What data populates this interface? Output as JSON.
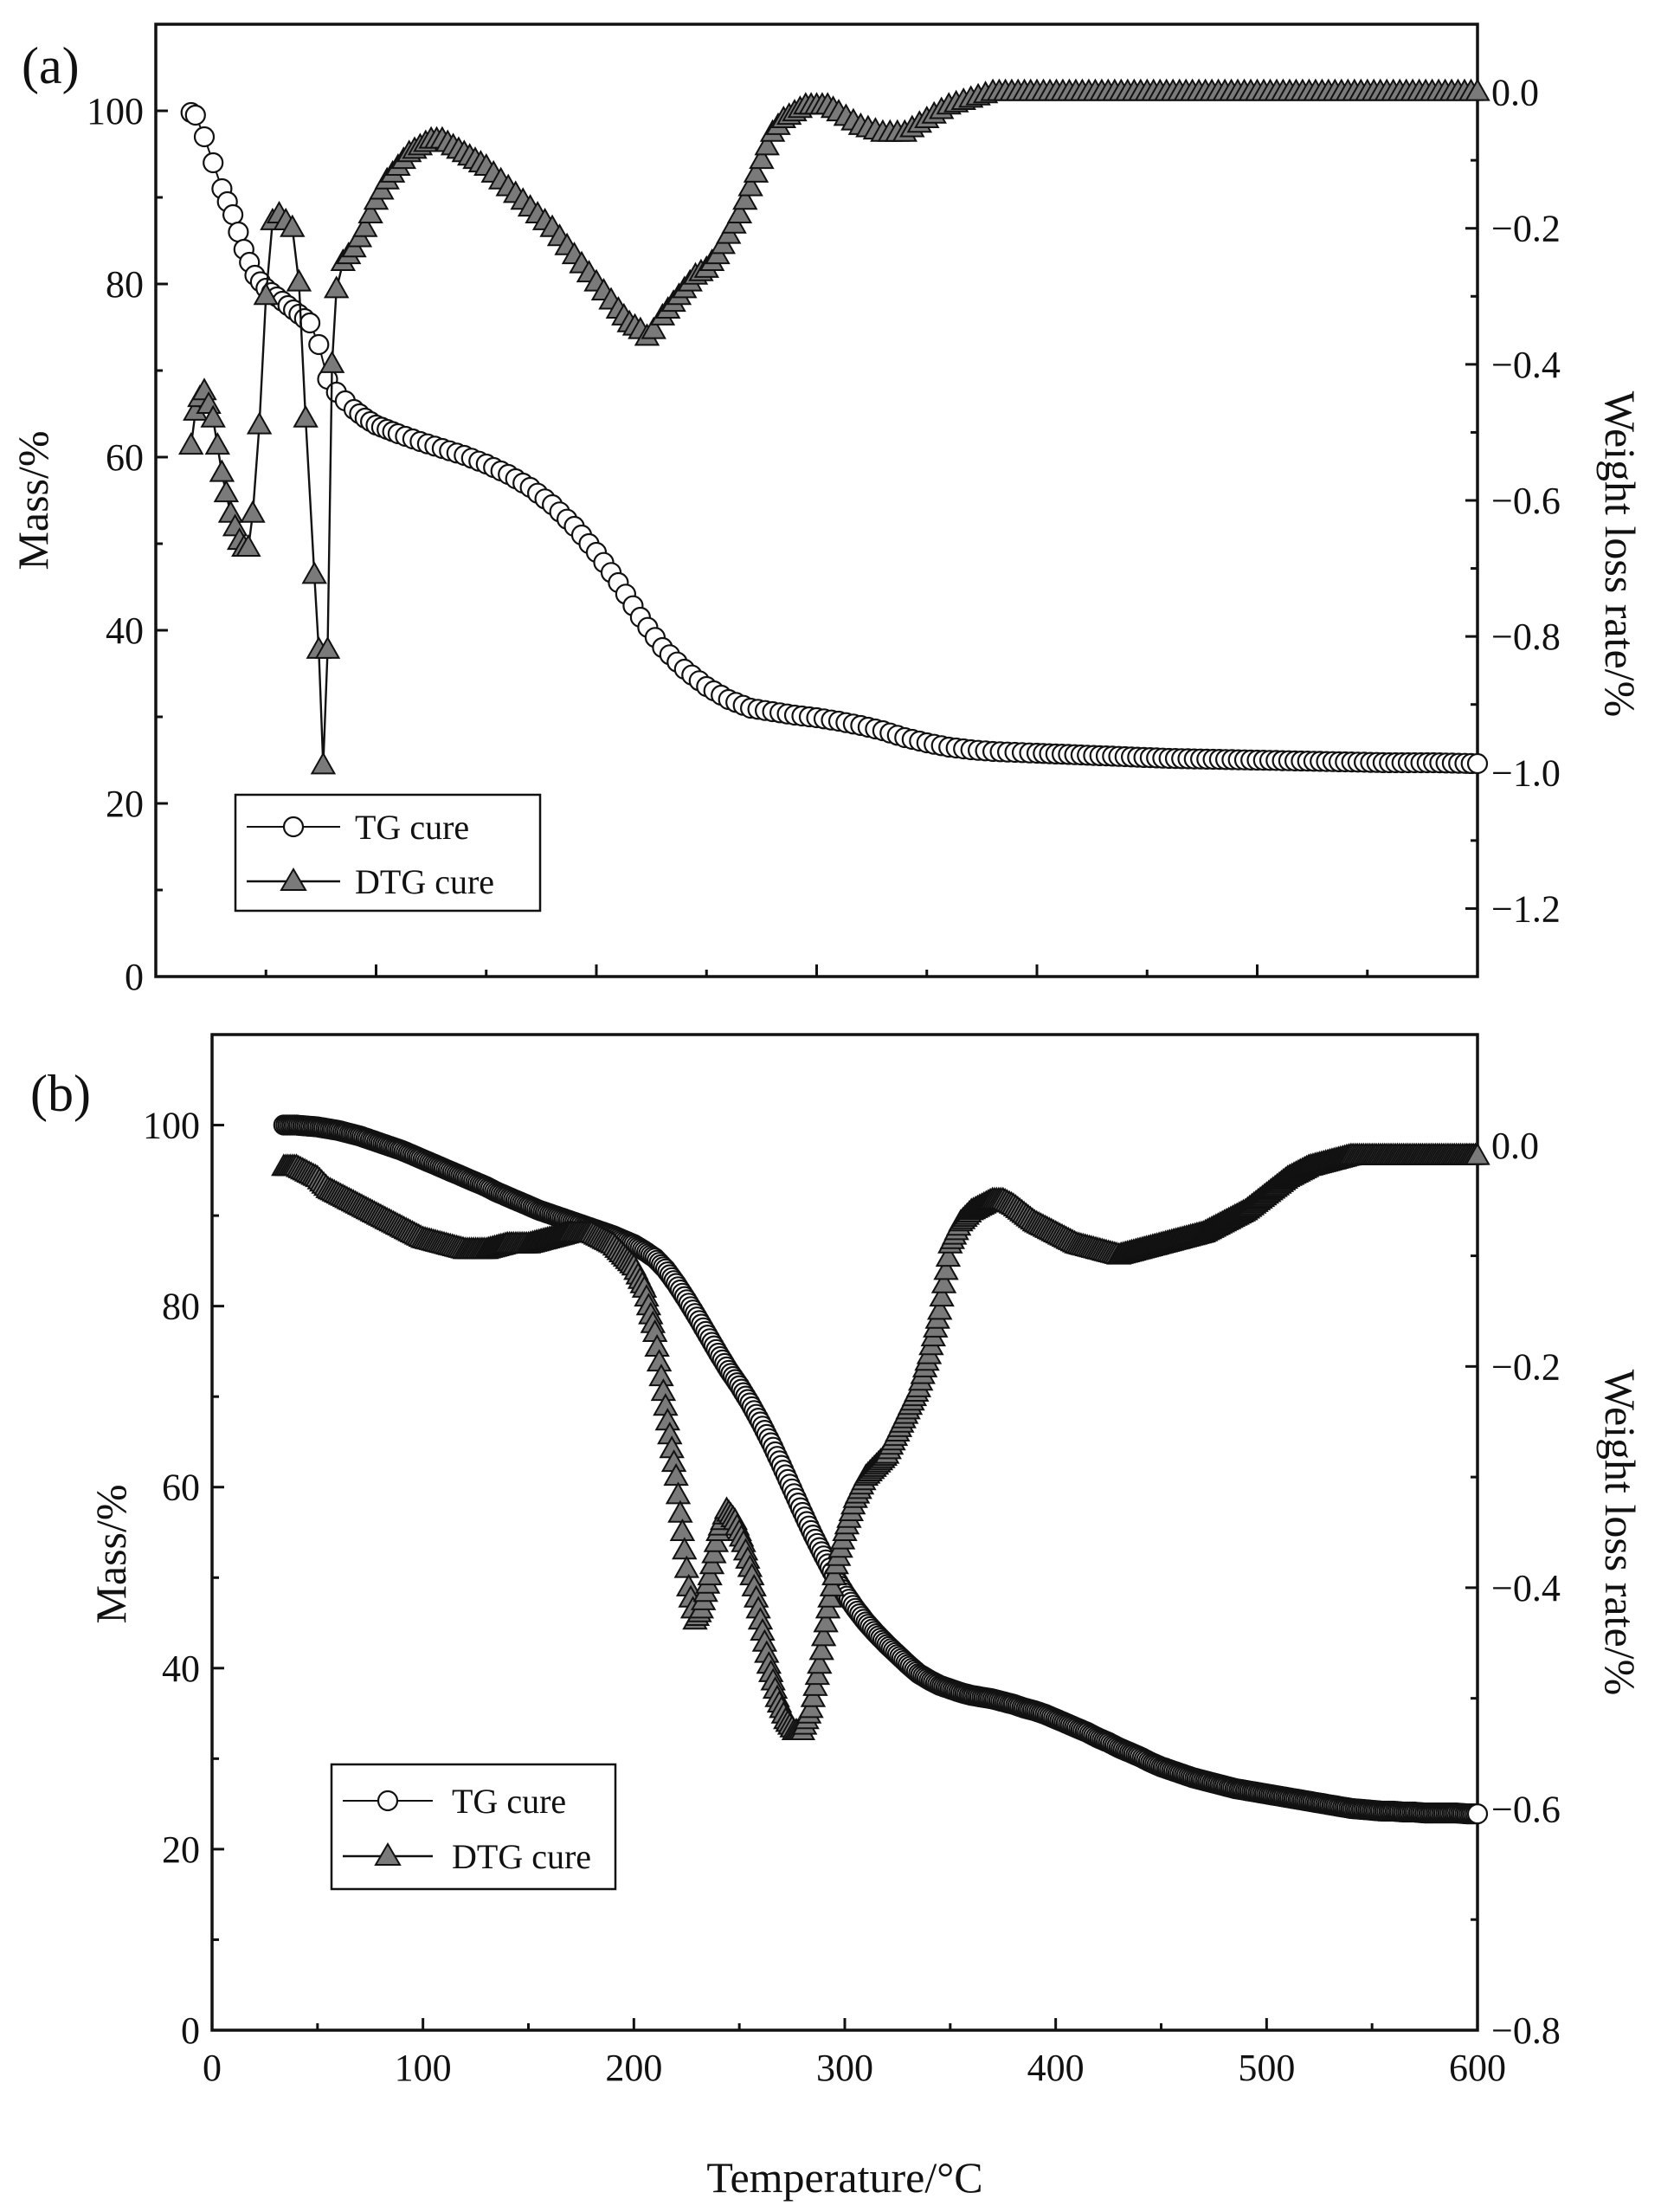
{
  "figure": {
    "x_axis_title": "Temperature/°C",
    "x_tick_labels": [
      "0",
      "100",
      "200",
      "300",
      "400",
      "500",
      "600"
    ]
  },
  "chart_data": [
    {
      "type": "line",
      "panel_label": "(a)",
      "xlim": [
        0,
        600
      ],
      "ylabel_left": "Mass/%",
      "ylabel_right": "Weight loss rate/%",
      "ylim_left": [
        0,
        110
      ],
      "ylim_right": [
        -1.3,
        0.1
      ],
      "y_left_ticks": [
        0,
        20,
        40,
        60,
        80,
        100
      ],
      "y_left_tick_labels": [
        "0",
        "20",
        "40",
        "60",
        "80",
        "100"
      ],
      "y_right_ticks": [
        0.0,
        -0.2,
        -0.4,
        -0.6,
        -0.8,
        -1.0,
        -1.2
      ],
      "y_right_tick_labels": [
        "0.0",
        "−0.2",
        "−0.4",
        "−0.6",
        "−0.8",
        "−1.0",
        "−1.2"
      ],
      "legend": [
        "TG cure",
        "DTG cure"
      ],
      "legend_position": "bottom-left",
      "series": [
        {
          "name": "TG cure",
          "axis": "left",
          "marker": "circle",
          "x": [
            16,
            18,
            22,
            26,
            30,
            35,
            40,
            45,
            50,
            55,
            60,
            65,
            70,
            74,
            78,
            82,
            86,
            90,
            95,
            100,
            105,
            110,
            120,
            130,
            140,
            150,
            160,
            170,
            180,
            190,
            200,
            210,
            220,
            230,
            240,
            250,
            260,
            270,
            280,
            290,
            300,
            310,
            320,
            330,
            340,
            350,
            360,
            370,
            380,
            390,
            400,
            420,
            440,
            460,
            480,
            500,
            520,
            540,
            560,
            580,
            600
          ],
          "y": [
            99.8,
            99.5,
            97,
            94,
            91,
            88,
            84,
            81,
            79.5,
            78.5,
            77.5,
            76.5,
            75.5,
            73,
            69,
            67.5,
            66.5,
            65.5,
            64.5,
            63.7,
            63.2,
            62.7,
            61.8,
            61,
            60.2,
            59.2,
            58,
            56.5,
            54.5,
            52,
            49,
            45.5,
            41.5,
            38,
            35.5,
            33.5,
            32,
            31,
            30.6,
            30.2,
            29.9,
            29.5,
            29,
            28.4,
            27.6,
            27,
            26.5,
            26.2,
            26,
            25.9,
            25.8,
            25.6,
            25.4,
            25.2,
            25.1,
            25,
            24.9,
            24.8,
            24.7,
            24.7,
            24.6
          ]
        },
        {
          "name": "DTG cure",
          "axis": "right",
          "marker": "triangle",
          "x": [
            16,
            18,
            20,
            22,
            24,
            26,
            28,
            30,
            32,
            34,
            36,
            38,
            40,
            42,
            44,
            47,
            50,
            53,
            56,
            59,
            62,
            65,
            68,
            72,
            74,
            76,
            78,
            80,
            82,
            85,
            90,
            95,
            100,
            105,
            110,
            115,
            120,
            125,
            130,
            135,
            140,
            145,
            150,
            160,
            170,
            180,
            190,
            200,
            210,
            215,
            220,
            223,
            226,
            230,
            235,
            240,
            245,
            250,
            255,
            260,
            265,
            270,
            275,
            280,
            285,
            290,
            295,
            300,
            305,
            310,
            320,
            330,
            340,
            350,
            360,
            370,
            380,
            400,
            450,
            500,
            550,
            600
          ],
          "y": [
            -0.52,
            -0.47,
            -0.45,
            -0.44,
            -0.46,
            -0.48,
            -0.52,
            -0.56,
            -0.59,
            -0.62,
            -0.64,
            -0.66,
            -0.67,
            -0.67,
            -0.62,
            -0.49,
            -0.3,
            -0.19,
            -0.18,
            -0.19,
            -0.2,
            -0.28,
            -0.48,
            -0.71,
            -0.82,
            -0.99,
            -0.82,
            -0.4,
            -0.29,
            -0.25,
            -0.23,
            -0.2,
            -0.16,
            -0.13,
            -0.11,
            -0.09,
            -0.08,
            -0.07,
            -0.07,
            -0.08,
            -0.09,
            -0.1,
            -0.11,
            -0.14,
            -0.17,
            -0.2,
            -0.24,
            -0.28,
            -0.32,
            -0.34,
            -0.35,
            -0.36,
            -0.35,
            -0.33,
            -0.31,
            -0.29,
            -0.27,
            -0.26,
            -0.24,
            -0.21,
            -0.18,
            -0.14,
            -0.1,
            -0.06,
            -0.04,
            -0.03,
            -0.02,
            -0.02,
            -0.02,
            -0.03,
            -0.05,
            -0.06,
            -0.06,
            -0.04,
            -0.02,
            -0.01,
            0.0,
            0.0,
            0.0,
            0.0,
            0.0,
            0.0
          ]
        }
      ]
    },
    {
      "type": "line",
      "panel_label": "(b)",
      "xlim": [
        0,
        600
      ],
      "ylabel_left": "Mass/%",
      "ylabel_right": "Weight loss rate/%",
      "ylim_left": [
        0,
        110
      ],
      "ylim_right": [
        -0.8,
        0.1
      ],
      "y_left_ticks": [
        0,
        20,
        40,
        60,
        80,
        100
      ],
      "y_left_tick_labels": [
        "0",
        "20",
        "40",
        "60",
        "80",
        "100"
      ],
      "y_right_ticks": [
        0.0,
        -0.2,
        -0.4,
        -0.6,
        -0.8
      ],
      "y_right_tick_labels": [
        "0.0",
        "−0.2",
        "−0.4",
        "−0.6",
        "−0.8"
      ],
      "legend": [
        "TG cure",
        "DTG cure"
      ],
      "legend_position": "bottom-left",
      "series": [
        {
          "name": "TG cure",
          "axis": "left",
          "marker": "circle",
          "x": [
            34,
            40,
            45,
            50,
            55,
            60,
            65,
            70,
            75,
            80,
            85,
            90,
            95,
            100,
            105,
            110,
            115,
            120,
            125,
            130,
            135,
            140,
            145,
            150,
            155,
            160,
            165,
            170,
            175,
            180,
            185,
            190,
            195,
            200,
            205,
            210,
            215,
            220,
            225,
            230,
            235,
            240,
            245,
            250,
            255,
            260,
            265,
            270,
            275,
            280,
            285,
            290,
            295,
            300,
            305,
            310,
            315,
            320,
            325,
            330,
            335,
            340,
            345,
            350,
            355,
            360,
            365,
            370,
            375,
            380,
            385,
            390,
            395,
            400,
            405,
            410,
            415,
            420,
            425,
            430,
            435,
            440,
            445,
            450,
            455,
            460,
            465,
            470,
            475,
            480,
            485,
            490,
            495,
            500,
            505,
            510,
            515,
            520,
            525,
            530,
            535,
            540,
            545,
            550,
            555,
            560,
            565,
            570,
            575,
            580,
            585,
            590,
            595,
            600
          ],
          "y": [
            100,
            100,
            99.9,
            99.8,
            99.6,
            99.4,
            99.1,
            98.8,
            98.4,
            98,
            97.6,
            97.2,
            96.7,
            96.2,
            95.7,
            95.2,
            94.7,
            94.2,
            93.7,
            93.2,
            92.6,
            92.1,
            91.6,
            91.1,
            90.6,
            90.2,
            89.8,
            89.4,
            89,
            88.6,
            88.2,
            87.8,
            87.3,
            86.8,
            86.1,
            85.3,
            84.1,
            82.5,
            80.7,
            78.8,
            76.8,
            74.8,
            72.9,
            71.2,
            69.3,
            67.2,
            64.9,
            62.4,
            59.8,
            57.2,
            54.7,
            52.4,
            50.2,
            48.3,
            46.6,
            45.1,
            43.8,
            42.6,
            41.5,
            40.4,
            39.4,
            38.7,
            38.1,
            37.7,
            37.3,
            37,
            36.8,
            36.6,
            36.3,
            36,
            35.6,
            35.3,
            34.9,
            34.4,
            33.9,
            33.4,
            32.9,
            32.3,
            31.8,
            31.2,
            30.7,
            30.2,
            29.6,
            29.1,
            28.7,
            28.3,
            27.9,
            27.6,
            27.3,
            27,
            26.7,
            26.5,
            26.3,
            26.1,
            25.9,
            25.7,
            25.5,
            25.3,
            25.1,
            24.9,
            24.7,
            24.5,
            24.4,
            24.3,
            24.2,
            24.2,
            24.1,
            24.1,
            24,
            24,
            24,
            24,
            23.9,
            23.9
          ]
        },
        {
          "name": "DTG cure",
          "axis": "right",
          "marker": "triangle",
          "x": [
            34,
            40,
            45,
            50,
            55,
            60,
            70,
            80,
            90,
            100,
            110,
            120,
            130,
            140,
            150,
            160,
            170,
            180,
            190,
            200,
            205,
            210,
            213,
            216,
            220,
            223,
            226,
            229,
            232,
            236,
            240,
            244,
            248,
            252,
            256,
            260,
            264,
            268,
            272,
            276,
            280,
            284,
            288,
            292,
            296,
            300,
            305,
            310,
            315,
            320,
            325,
            330,
            335,
            340,
            345,
            350,
            355,
            360,
            365,
            370,
            375,
            380,
            390,
            400,
            410,
            420,
            430,
            440,
            450,
            460,
            470,
            480,
            490,
            500,
            510,
            520,
            530,
            540,
            550,
            560,
            570,
            580,
            590,
            600
          ],
          "y": [
            -0.02,
            -0.02,
            -0.025,
            -0.03,
            -0.04,
            -0.045,
            -0.055,
            -0.065,
            -0.075,
            -0.085,
            -0.09,
            -0.095,
            -0.095,
            -0.09,
            -0.09,
            -0.085,
            -0.08,
            -0.08,
            -0.09,
            -0.11,
            -0.13,
            -0.17,
            -0.21,
            -0.25,
            -0.3,
            -0.35,
            -0.4,
            -0.43,
            -0.42,
            -0.39,
            -0.35,
            -0.33,
            -0.34,
            -0.36,
            -0.39,
            -0.43,
            -0.47,
            -0.5,
            -0.52,
            -0.53,
            -0.53,
            -0.51,
            -0.47,
            -0.42,
            -0.38,
            -0.35,
            -0.32,
            -0.3,
            -0.29,
            -0.28,
            -0.26,
            -0.24,
            -0.22,
            -0.19,
            -0.15,
            -0.09,
            -0.07,
            -0.06,
            -0.055,
            -0.05,
            -0.05,
            -0.055,
            -0.07,
            -0.08,
            -0.09,
            -0.095,
            -0.1,
            -0.095,
            -0.09,
            -0.085,
            -0.08,
            -0.07,
            -0.06,
            -0.045,
            -0.03,
            -0.02,
            -0.015,
            -0.01,
            -0.01,
            -0.01,
            -0.01,
            -0.01,
            -0.01,
            -0.01
          ]
        }
      ]
    }
  ]
}
